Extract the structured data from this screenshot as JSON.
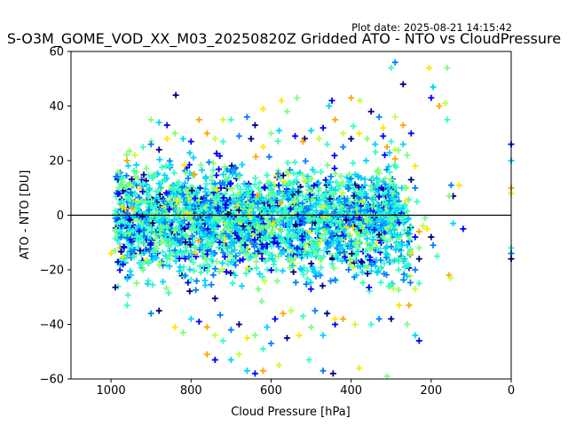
{
  "chart_data": {
    "type": "scatter",
    "plot_date": "Plot date: 2025-08-21 14:15:42",
    "title": "S-O3M_GOME_VOD_XX_M03_20250820Z Gridded ATO - NTO vs CloudPressure",
    "xlabel": "Cloud Pressure [hPa]",
    "ylabel": "ATO - NTO [DU]",
    "xlim": [
      1100,
      0
    ],
    "ylim": [
      -60,
      60
    ],
    "x_ticks": [
      1000,
      800,
      600,
      400,
      200,
      0
    ],
    "y_ticks": [
      -60,
      -40,
      -20,
      0,
      20,
      40,
      60
    ],
    "reference_line_y": 0,
    "grid": false,
    "marker": "+",
    "colors": [
      "#00007f",
      "#0000ff",
      "#007fff",
      "#00d4ff",
      "#35ffc1",
      "#7cff79",
      "#c1ff35",
      "#ffe600",
      "#ffa600"
    ],
    "clusters": [
      {
        "x_range": [
          990,
          280
        ],
        "y_center": 2,
        "y_spread": 8
      },
      {
        "x_range": [
          990,
          250
        ],
        "y_center": -6,
        "y_spread": 9
      }
    ],
    "points": [
      [
        838,
        44
      ],
      [
        574,
        42
      ],
      [
        535,
        43
      ],
      [
        455,
        40
      ],
      [
        448,
        42
      ],
      [
        400,
        43
      ],
      [
        378,
        42
      ],
      [
        300,
        54
      ],
      [
        290,
        56
      ],
      [
        270,
        48
      ],
      [
        205,
        54
      ],
      [
        160,
        54
      ],
      [
        195,
        47
      ],
      [
        200,
        43
      ],
      [
        180,
        40
      ],
      [
        165,
        41
      ],
      [
        160,
        35
      ],
      [
        150,
        11
      ],
      [
        145,
        7
      ],
      [
        130,
        11
      ],
      [
        155,
        7
      ],
      [
        145,
        -3
      ],
      [
        120,
        -5
      ],
      [
        155,
        -22
      ],
      [
        152,
        -23
      ],
      [
        185,
        -15
      ],
      [
        195,
        -11
      ],
      [
        200,
        -8
      ],
      [
        210,
        -5
      ],
      [
        215,
        -1
      ],
      [
        0,
        20
      ],
      [
        0,
        26
      ],
      [
        0,
        10
      ],
      [
        0,
        8
      ],
      [
        0,
        -12
      ],
      [
        0,
        -14
      ],
      [
        0,
        -16
      ],
      [
        1000,
        -14
      ],
      [
        990,
        -13
      ],
      [
        660,
        -57
      ],
      [
        640,
        -58
      ],
      [
        620,
        -57
      ],
      [
        580,
        -55
      ],
      [
        505,
        -53
      ],
      [
        470,
        -57
      ],
      [
        445,
        -58
      ],
      [
        380,
        -56
      ],
      [
        310,
        -59
      ],
      [
        700,
        -53
      ],
      [
        740,
        -53
      ],
      [
        760,
        -51
      ],
      [
        680,
        -51
      ],
      [
        620,
        -49
      ],
      [
        600,
        -47
      ],
      [
        560,
        -45
      ],
      [
        530,
        -44
      ],
      [
        500,
        -41
      ],
      [
        470,
        -44
      ],
      [
        440,
        -40
      ],
      [
        420,
        -38
      ],
      [
        390,
        -40
      ],
      [
        350,
        -40
      ],
      [
        330,
        -38
      ],
      [
        300,
        -38
      ],
      [
        280,
        -33
      ],
      [
        260,
        -40
      ],
      [
        240,
        -44
      ],
      [
        230,
        -46
      ],
      [
        255,
        -33
      ],
      [
        240,
        -27
      ],
      [
        230,
        -25
      ],
      [
        240,
        -20
      ],
      [
        230,
        -16
      ],
      [
        250,
        -14
      ],
      [
        230,
        -12
      ],
      [
        260,
        -11
      ],
      [
        240,
        -8
      ],
      [
        230,
        -6
      ],
      [
        220,
        -4
      ],
      [
        235,
        5
      ],
      [
        240,
        10
      ],
      [
        250,
        13
      ],
      [
        240,
        18
      ],
      [
        260,
        22
      ],
      [
        270,
        26
      ],
      [
        250,
        30
      ],
      [
        270,
        33
      ],
      [
        290,
        36
      ],
      [
        300,
        27
      ],
      [
        330,
        36
      ],
      [
        350,
        38
      ],
      [
        320,
        32
      ],
      [
        900,
        35
      ],
      [
        880,
        34
      ],
      [
        860,
        33
      ],
      [
        780,
        35
      ],
      [
        720,
        35
      ],
      [
        700,
        35
      ],
      [
        660,
        36
      ],
      [
        640,
        33
      ],
      [
        620,
        39
      ],
      [
        560,
        38
      ],
      [
        500,
        31
      ],
      [
        470,
        32
      ],
      [
        440,
        35
      ],
      [
        420,
        30
      ],
      [
        960,
        -33
      ],
      [
        900,
        -36
      ],
      [
        880,
        -35
      ],
      [
        840,
        -41
      ],
      [
        820,
        -43
      ],
      [
        800,
        -38
      ],
      [
        780,
        -39
      ],
      [
        760,
        -41
      ],
      [
        740,
        -44
      ],
      [
        720,
        -46
      ],
      [
        700,
        -42
      ],
      [
        680,
        -40
      ],
      [
        660,
        -45
      ],
      [
        640,
        -44
      ],
      [
        610,
        -41
      ],
      [
        590,
        -38
      ],
      [
        570,
        -36
      ],
      [
        550,
        -35
      ],
      [
        520,
        -37
      ],
      [
        490,
        -35
      ],
      [
        460,
        -36
      ],
      [
        440,
        -38
      ],
      [
        920,
        -20
      ],
      [
        950,
        -22
      ],
      [
        970,
        -18
      ],
      [
        960,
        20
      ],
      [
        940,
        22
      ],
      [
        920,
        25
      ],
      [
        900,
        26
      ],
      [
        880,
        24
      ],
      [
        860,
        28
      ],
      [
        840,
        30
      ],
      [
        820,
        28
      ],
      [
        800,
        27
      ],
      [
        760,
        30
      ],
      [
        740,
        28
      ],
      [
        720,
        27
      ],
      [
        680,
        29
      ],
      [
        650,
        28
      ],
      [
        620,
        25
      ],
      [
        600,
        30
      ],
      [
        580,
        31
      ],
      [
        540,
        29
      ],
      [
        520,
        27
      ],
      [
        480,
        28
      ],
      [
        460,
        26
      ],
      [
        420,
        25
      ],
      [
        400,
        28
      ],
      [
        380,
        30
      ],
      [
        360,
        28
      ],
      [
        340,
        26
      ],
      [
        320,
        29
      ],
      [
        310,
        25
      ],
      [
        290,
        24
      ]
    ]
  }
}
